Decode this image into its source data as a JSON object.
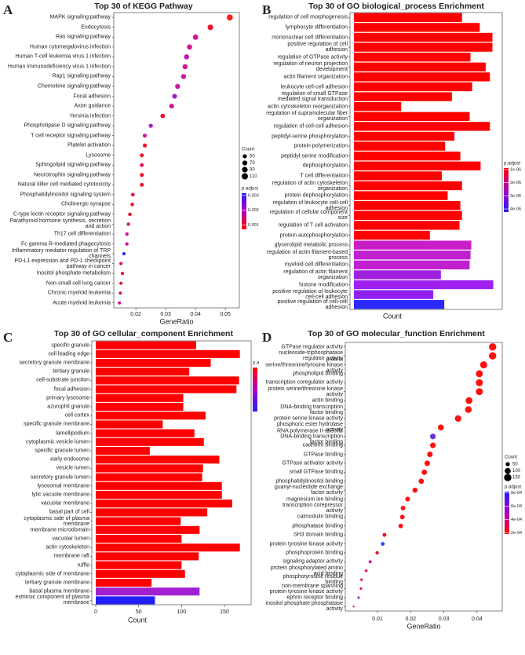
{
  "chart_data": [
    {
      "panel": "A",
      "type": "scatter",
      "title": "Top 30 of KEGG Pathway",
      "xlabel": "GeneRatio",
      "categories": [
        "MAPK signaling pathway",
        "Endocytosis",
        "Ras signaling pathway",
        "Human cytomegalovirus infection",
        "Human T-cell leukemia virus 1 infection",
        "Human immunodeficiency virus 1 infection",
        "Rap1 signaling pathway",
        "Chemokine signaling pathway",
        "Focal adhesion",
        "Axon guidance",
        "Yersinia infection",
        "Phospholipase D signaling pathway",
        "T cell receptor signaling pathway",
        "Platelet activation",
        "Lysosome",
        "Sphingolipid signaling pathway",
        "Neurotrophin signaling pathway",
        "Natural killer cell mediated cytotoxicity",
        "Phosphatidylinositol signaling system",
        "Cholinergic synapse",
        "C-type lectin receptor signaling pathway",
        "Parathyroid hormone synthesis, secretion and action",
        "Th17 cell differentiation",
        "Fc gamma R-mediated phagocytosis",
        "Inflammatory mediator regulation of TRP channels",
        "PD-L1 expression and PD-1 checkpoint pathway in cancer",
        "Inositol phosphate metabolism",
        "Non-small cell lung cancer",
        "Chronic myeloid leukemia",
        "Acute myeloid leukemia"
      ],
      "values": [
        0.0515,
        0.045,
        0.04,
        0.038,
        0.037,
        0.0365,
        0.036,
        0.034,
        0.033,
        0.032,
        0.029,
        0.025,
        0.023,
        0.023,
        0.022,
        0.022,
        0.022,
        0.022,
        0.019,
        0.0188,
        0.018,
        0.0175,
        0.017,
        0.017,
        0.016,
        0.015,
        0.0155,
        0.015,
        0.0148,
        0.0145
      ],
      "counts": [
        103,
        90,
        80,
        76,
        74,
        73,
        72,
        68,
        66,
        64,
        58,
        50,
        46,
        46,
        44,
        44,
        44,
        44,
        38,
        38,
        36,
        35,
        34,
        34,
        32,
        30,
        31,
        30,
        30,
        29
      ],
      "colors": [
        "#ff1a1a",
        "#ee1438",
        "#d8148a",
        "#d01890",
        "#c018b0",
        "#cc1896",
        "#cc1896",
        "#c8189e",
        "#a020c8",
        "#cc1896",
        "#f01030",
        "#b01ad0",
        "#d01890",
        "#f01030",
        "#f01030",
        "#e0146a",
        "#f01030",
        "#f01030",
        "#f01030",
        "#f01030",
        "#f01030",
        "#d8148a",
        "#d01890",
        "#cc1896",
        "#3030ff",
        "#f01030",
        "#f01030",
        "#f01030",
        "#e0146a",
        "#d01890"
      ],
      "xlim": [
        0.0126,
        0.0547
      ],
      "xticks": [
        0.02,
        0.03,
        0.04,
        0.05
      ],
      "size_legend": {
        "title": "Count",
        "values": [
          50,
          70,
          90,
          110
        ]
      },
      "color_legend": {
        "title": "p.adjust",
        "lim": [
          0.0007,
          0.00315
        ],
        "ticks": [
          0.003,
          0.002,
          0.001
        ],
        "colors": [
          "#ff0000",
          "#b000c0",
          "#2020ff"
        ]
      }
    },
    {
      "panel": "B",
      "type": "bar",
      "title": "Top 30 of GO biological_process Enrichment",
      "xlabel": "Count",
      "categories": [
        "regulation of cell morphogenesis",
        "lymphocyte differentiation",
        "mononuclear cell differentiation",
        "positive regulation of cell adhesion",
        "regulation of GTPase activity",
        "regulation of neuron projection development",
        "actin filament organization",
        "leukocyte cell-cell adhesion",
        "regulation of small GTPase mediated signal transduction",
        "actin cytoskeleton reorganization",
        "regulation of supramolecular fiber organization",
        "regulation of cell-cell adhesion",
        "peptidyl-serine phosphorylation",
        "protein polymerization",
        "peptidyl-serine modification",
        "dephosphorylation",
        "T cell differentiation",
        "regulation of actin cytoskeleton organization",
        "protein dephosphorylation",
        "regulation of leukocyte cell-cell adhesion",
        "regulation of cellular component size",
        "regulation of T cell activation",
        "protein autophosphorylation",
        "glycerolipid metabolic process",
        "regulation of actin filament-based process",
        "myeloid cell differentiation",
        "regulation of actin filament organization",
        "histone modification",
        "positive regulation of leukocyte cell-cell adhesion",
        "positive regulation of cell-cell adhesion"
      ],
      "values": [
        128,
        149,
        164,
        164,
        138,
        156,
        161,
        140,
        116,
        56,
        137,
        161,
        119,
        108,
        126,
        150,
        104,
        128,
        111,
        126,
        128,
        125,
        90,
        139,
        138,
        137,
        103,
        165,
        94,
        107
      ],
      "colors": [
        "#ff0000",
        "#ff0000",
        "#ff0000",
        "#ff0000",
        "#ff0000",
        "#ff0000",
        "#ff0000",
        "#ff0000",
        "#ff0000",
        "#ff0000",
        "#ff0000",
        "#ff0000",
        "#ff0000",
        "#ff0000",
        "#ff0000",
        "#ff0000",
        "#ff0000",
        "#ff0000",
        "#ff0000",
        "#ff0000",
        "#ff0000",
        "#ff0000",
        "#ff0000",
        "#c81ec8",
        "#c020d0",
        "#c020d0",
        "#a020e0",
        "#a020f0",
        "#9020f0",
        "#2a2aff"
      ],
      "xlim": [
        -4.6,
        175.6
      ],
      "color_legend": {
        "title": "p.adjust",
        "lim": [
          4.24e-06,
          8.8e-07
        ],
        "ticks": [
          {
            "value": 1e-06,
            "label": "1e-06"
          },
          {
            "value": 2e-06,
            "label": "2e-06"
          },
          {
            "value": 3e-06,
            "label": "3e-06"
          },
          {
            "value": 4e-06,
            "label": "4e-06"
          }
        ],
        "colors": [
          "#2020ff",
          "#b000c0",
          "#ff0000"
        ]
      }
    },
    {
      "panel": "C",
      "type": "bar",
      "title": "Top 30 of GO cellular_component Enrichment",
      "xlabel": "Count",
      "categories": [
        "specific granule",
        "cell leading edge",
        "secretory granule membrane",
        "tertiary granule",
        "cell-substrate junction",
        "focal adhesion",
        "primary lysosome",
        "azurophil granule",
        "cell cortex",
        "specific granule membrane",
        "lamellipodium",
        "cytoplasmic vesicle lumen",
        "specific granule lumen",
        "early endosome",
        "vesicle lumen",
        "secretory granule lumen",
        "lysosomal membrane",
        "lytic vacuole membrane",
        "vacuolar membrane",
        "basal part of cell",
        "cytoplasmic side of plasma membrane",
        "membrane microdomain",
        "vacuolar lumen",
        "actin cytoskeleton",
        "membrane raft",
        "ruffle",
        "cytoplasmic side of membrane",
        "tertiary granule membrane",
        "basal plasma membrane",
        "extrinsic component of plasma membrane"
      ],
      "values": [
        117,
        168,
        134,
        109,
        167,
        164,
        102,
        102,
        128,
        78,
        115,
        126,
        63,
        144,
        125,
        124,
        147,
        147,
        159,
        130,
        99,
        121,
        100,
        168,
        120,
        100,
        104,
        65,
        121,
        69
      ],
      "colors": [
        "#ff0000",
        "#ff0000",
        "#ff0000",
        "#ff0000",
        "#ff0000",
        "#ff0000",
        "#ff0000",
        "#ff0000",
        "#ff0000",
        "#ff0000",
        "#ff0000",
        "#ff0000",
        "#ff0000",
        "#ff0000",
        "#ff0000",
        "#ff0000",
        "#ff0000",
        "#ff0000",
        "#ff0000",
        "#ff0000",
        "#ff0000",
        "#ff0000",
        "#ff0000",
        "#ff0000",
        "#ff0000",
        "#ff0000",
        "#ff0000",
        "#ff0000",
        "#a020d0",
        "#2020ff"
      ],
      "xlim": [
        -4.6,
        181.1
      ],
      "xticks": [
        0,
        50,
        100,
        150
      ],
      "color_legend": {
        "title": "p.a",
        "colors": [
          "#2020ff",
          "#b000c0",
          "#ff0000"
        ]
      }
    },
    {
      "panel": "D",
      "type": "scatter",
      "title": "Top 30 of GO molecular_function Enrichment",
      "xlabel": "GeneRatio",
      "categories": [
        "GTPase regulator activity",
        "nucleoside-triphosphatase regulator activity",
        "protein serine/threonine/tyrosine kinase activity",
        "phospholipid binding",
        "transcription coregulator activity",
        "protein serine/threonine kinase activity",
        "actin binding",
        "DNA-binding transcription factor binding",
        "protein serine kinase activity",
        "phosphoric ester hydrolase activity",
        "RNA polymerase II-specific DNA-binding transcription factor binding",
        "cadherin binding",
        "GTPase binding",
        "GTPase activator activity",
        "small GTPase binding",
        "phosphatidylinositol binding",
        "guanyl-nucleotide exchange factor activity",
        "magnesium ion binding",
        "transcription corepressor activity",
        "calmodulin binding",
        "phosphatase binding",
        "SH3 domain binding",
        "protein tyrosine kinase activity",
        "phosphoprotein binding",
        "signaling adaptor activity",
        "protein phosphorylated amino acid binding",
        "phosphotyrosine residue binding",
        "non-membrane spanning protein tyrosine kinase activity",
        "ephrin receptor binding",
        "inositol phosphate phosphatase activity"
      ],
      "values": [
        0.0447,
        0.0447,
        0.042,
        0.0407,
        0.0407,
        0.0407,
        0.0376,
        0.0374,
        0.0343,
        0.0291,
        0.0267,
        0.0267,
        0.0258,
        0.025,
        0.0241,
        0.0232,
        0.0213,
        0.0191,
        0.0177,
        0.0175,
        0.017,
        0.0121,
        0.0116,
        0.0099,
        0.0078,
        0.0066,
        0.0052,
        0.005,
        0.0043,
        0.0028
      ],
      "counts": [
        152,
        152,
        143,
        138,
        138,
        138,
        128,
        127,
        117,
        99,
        91,
        91,
        88,
        85,
        82,
        79,
        72,
        65,
        60,
        60,
        58,
        41,
        39,
        34,
        27,
        22,
        18,
        17,
        15,
        10
      ],
      "colors": [
        "#ff1010",
        "#ff1010",
        "#ff1010",
        "#ff1010",
        "#ff1010",
        "#ff1010",
        "#ff1010",
        "#ff1010",
        "#ff1010",
        "#ff1010",
        "#7030e0",
        "#ff1010",
        "#ff1010",
        "#ff1010",
        "#ff1010",
        "#ff1010",
        "#ff1010",
        "#ff1010",
        "#ff1010",
        "#ff1010",
        "#ff1010",
        "#f01030",
        "#2040ff",
        "#f01030",
        "#d01080",
        "#e01060",
        "#f01030",
        "#f01030",
        "#9020c0",
        "#c01890"
      ],
      "xlim": [
        0.0003,
        0.0476
      ],
      "xticks": [
        0.01,
        0.02,
        0.03,
        0.04
      ],
      "size_legend": {
        "title": "Count",
        "values": [
          50,
          100,
          150
        ]
      },
      "color_legend": {
        "title": "p.adjust",
        "lim": [
          0.000181,
          0.000819
        ],
        "ticks": [
          {
            "value": 0.0008,
            "label": "8e-04"
          },
          {
            "value": 0.0006,
            "label": "6e-04"
          },
          {
            "value": 0.0004,
            "label": "4e-04"
          },
          {
            "value": 0.0002,
            "label": "2e-04"
          }
        ],
        "colors": [
          "#ff0000",
          "#b000c0",
          "#2020ff"
        ]
      }
    }
  ]
}
